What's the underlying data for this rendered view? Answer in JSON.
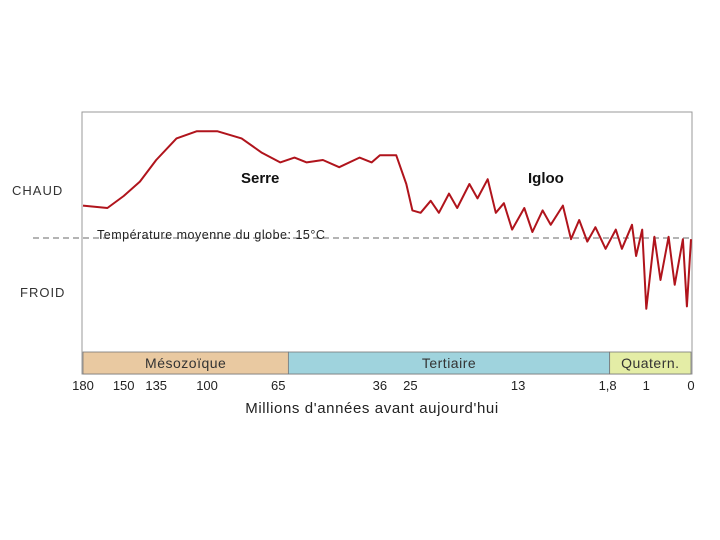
{
  "chart_data": {
    "type": "line",
    "title": "",
    "xlabel": "Millions d'années avant aujourd'hui",
    "ylabel_top": "CHAUD",
    "ylabel_bottom": "FROID",
    "reference_line_label": "Température moyenne du globe: 15°C",
    "annotations": [
      "Serre",
      "Igloo"
    ],
    "x_ticks": [
      {
        "label": "180",
        "x": 0
      },
      {
        "label": "150",
        "x": 1
      },
      {
        "label": "135",
        "x": 1.8
      },
      {
        "label": "100",
        "x": 3.05
      },
      {
        "label": "65",
        "x": 4.8
      },
      {
        "label": "36",
        "x": 7.3
      },
      {
        "label": "25",
        "x": 8.05
      },
      {
        "label": "13",
        "x": 10.7
      },
      {
        "label": "1,8",
        "x": 12.9
      },
      {
        "label": "1",
        "x": 13.85
      },
      {
        "label": "0",
        "x": 14.95
      }
    ],
    "eras": [
      {
        "name": "Mésozoïque",
        "start": 0,
        "end": 5.05,
        "color": "#e9c9a1"
      },
      {
        "name": "Tertiaire",
        "start": 5.05,
        "end": 12.95,
        "color": "#9fd3dd"
      },
      {
        "name": "Quatern.",
        "start": 12.95,
        "end": 14.95,
        "color": "#e4eda6"
      }
    ],
    "ylim": [
      0,
      1
    ],
    "reference_y": 0.475,
    "series": [
      {
        "color": "#b0141c",
        "points": [
          [
            0,
            0.61
          ],
          [
            0.6,
            0.6
          ],
          [
            1.0,
            0.65
          ],
          [
            1.4,
            0.71
          ],
          [
            1.8,
            0.8
          ],
          [
            2.3,
            0.89
          ],
          [
            2.8,
            0.92
          ],
          [
            3.3,
            0.92
          ],
          [
            3.9,
            0.89
          ],
          [
            4.4,
            0.83
          ],
          [
            4.85,
            0.79
          ],
          [
            5.2,
            0.81
          ],
          [
            5.5,
            0.79
          ],
          [
            5.9,
            0.8
          ],
          [
            6.3,
            0.77
          ],
          [
            6.8,
            0.81
          ],
          [
            7.1,
            0.79
          ],
          [
            7.3,
            0.82
          ],
          [
            7.7,
            0.82
          ],
          [
            7.95,
            0.7
          ],
          [
            8.1,
            0.59
          ],
          [
            8.3,
            0.58
          ],
          [
            8.55,
            0.63
          ],
          [
            8.75,
            0.58
          ],
          [
            9.0,
            0.66
          ],
          [
            9.2,
            0.6
          ],
          [
            9.5,
            0.7
          ],
          [
            9.7,
            0.64
          ],
          [
            9.95,
            0.72
          ],
          [
            10.15,
            0.58
          ],
          [
            10.35,
            0.62
          ],
          [
            10.55,
            0.51
          ],
          [
            10.85,
            0.6
          ],
          [
            11.05,
            0.5
          ],
          [
            11.3,
            0.59
          ],
          [
            11.5,
            0.53
          ],
          [
            11.8,
            0.61
          ],
          [
            12.0,
            0.47
          ],
          [
            12.2,
            0.55
          ],
          [
            12.4,
            0.46
          ],
          [
            12.6,
            0.52
          ],
          [
            12.85,
            0.43
          ],
          [
            13.1,
            0.51
          ],
          [
            13.25,
            0.43
          ],
          [
            13.5,
            0.53
          ],
          [
            13.6,
            0.4
          ],
          [
            13.75,
            0.51
          ],
          [
            13.85,
            0.18
          ],
          [
            14.05,
            0.48
          ],
          [
            14.2,
            0.3
          ],
          [
            14.4,
            0.48
          ],
          [
            14.55,
            0.28
          ],
          [
            14.75,
            0.47
          ],
          [
            14.85,
            0.19
          ],
          [
            14.95,
            0.47
          ]
        ]
      }
    ]
  }
}
